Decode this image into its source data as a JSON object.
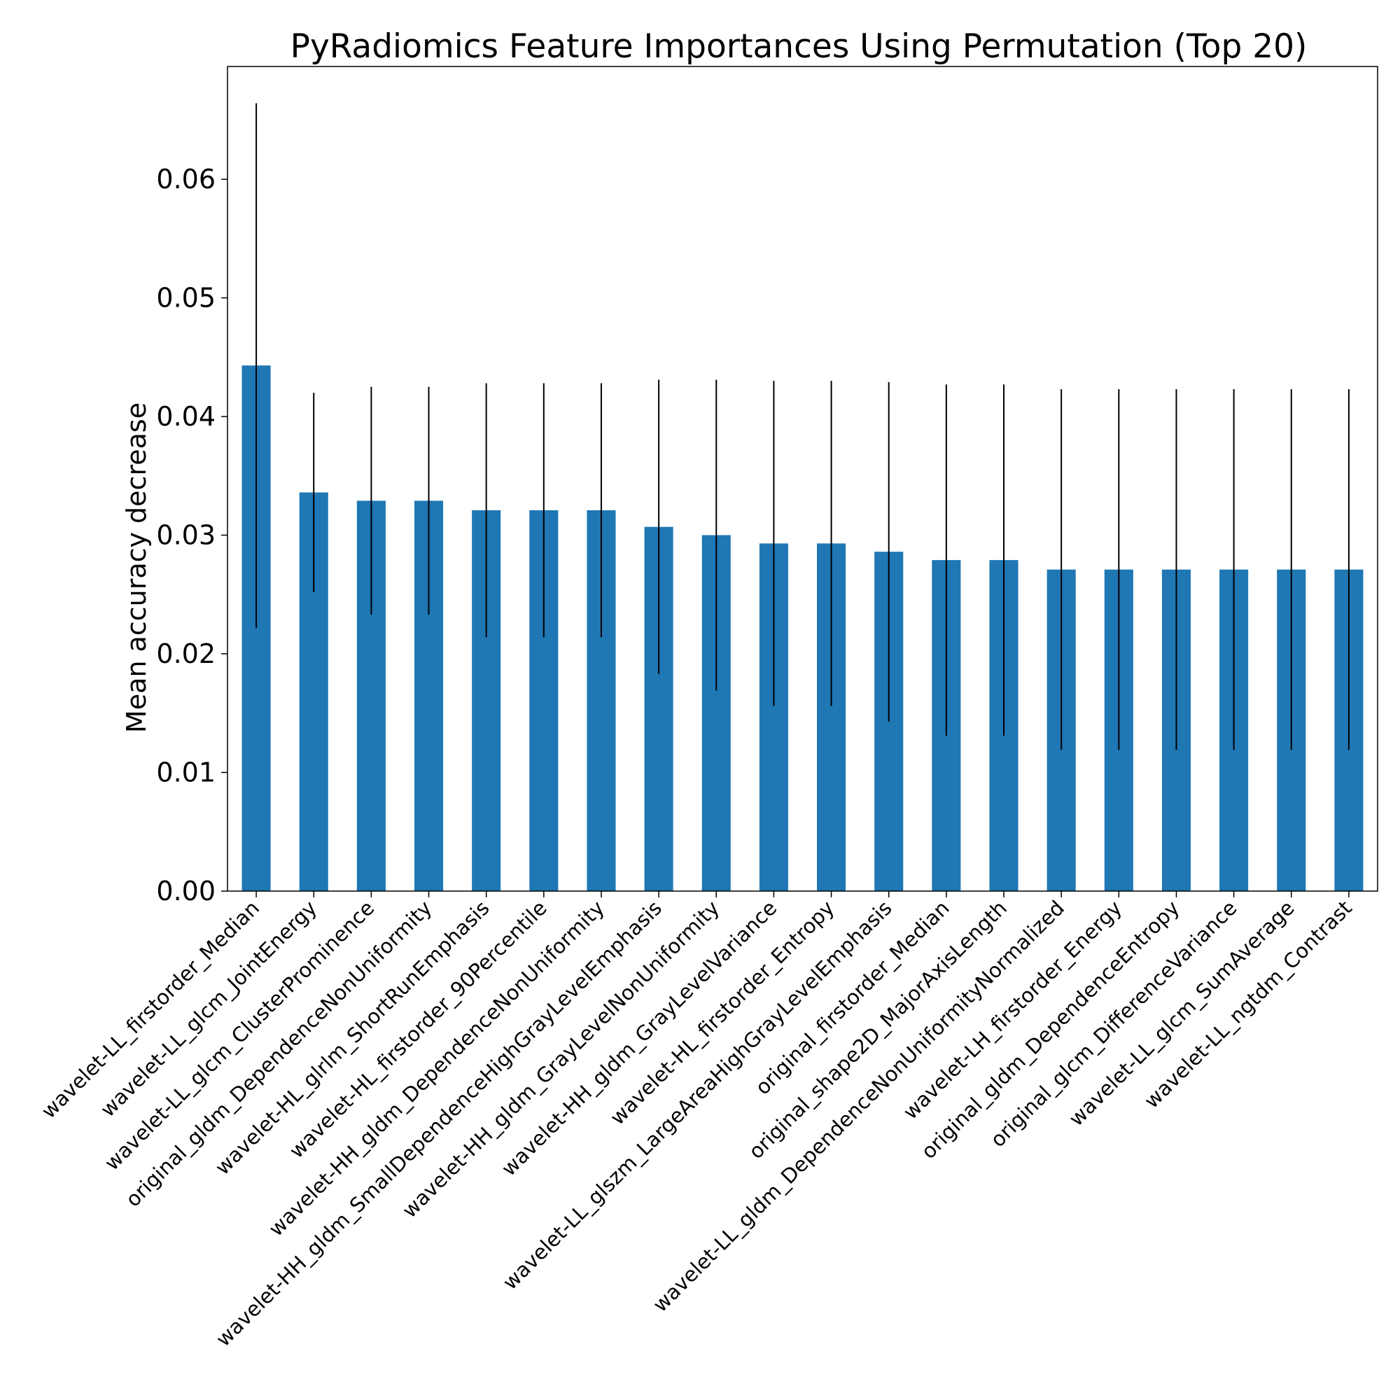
{
  "chart_data": {
    "type": "bar",
    "title": "PyRadiomics Feature Importances Using Permutation (Top 20)",
    "xlabel": "",
    "ylabel": "Mean accuracy decrease",
    "ylim": [
      0.0,
      0.0695
    ],
    "yticks": [
      "0.00",
      "0.01",
      "0.02",
      "0.03",
      "0.04",
      "0.05",
      "0.06"
    ],
    "grid": false,
    "legend": "none",
    "bar_color": "#1f77b4",
    "errorbar_color": "#000000",
    "categories": [
      "wavelet-LL_firstorder_Median",
      "wavelet-LL_glcm_JointEnergy",
      "wavelet-LL_glcm_ClusterProminence",
      "original_gldm_DependenceNonUniformity",
      "wavelet-HL_glrlm_ShortRunEmphasis",
      "wavelet-HL_firstorder_90Percentile",
      "wavelet-HH_gldm_DependenceNonUniformity",
      "wavelet-HH_gldm_SmallDependenceHighGrayLevelEmphasis",
      "wavelet-HH_gldm_GrayLevelNonUniformity",
      "wavelet-HH_gldm_GrayLevelVariance",
      "wavelet-HL_firstorder_Entropy",
      "wavelet-LL_glszm_LargeAreaHighGrayLevelEmphasis",
      "original_firstorder_Median",
      "original_shape2D_MajorAxisLength",
      "wavelet-LL_gldm_DependenceNonUniformityNormalized",
      "wavelet-LH_firstorder_Energy",
      "original_gldm_DependenceEntropy",
      "original_glcm_DifferenceVariance",
      "wavelet-LL_glcm_SumAverage",
      "wavelet-LL_ngtdm_Contrast"
    ],
    "values": [
      0.0443,
      0.0336,
      0.0329,
      0.0329,
      0.0321,
      0.0321,
      0.0321,
      0.0307,
      0.03,
      0.0293,
      0.0293,
      0.0286,
      0.0279,
      0.0279,
      0.0271,
      0.0271,
      0.0271,
      0.0271,
      0.0271,
      0.0271
    ],
    "errors": [
      0.0221,
      0.0084,
      0.0096,
      0.0096,
      0.0107,
      0.0107,
      0.0107,
      0.0124,
      0.0131,
      0.0137,
      0.0137,
      0.0143,
      0.0148,
      0.0148,
      0.0152,
      0.0152,
      0.0152,
      0.0152,
      0.0152,
      0.0152
    ]
  }
}
